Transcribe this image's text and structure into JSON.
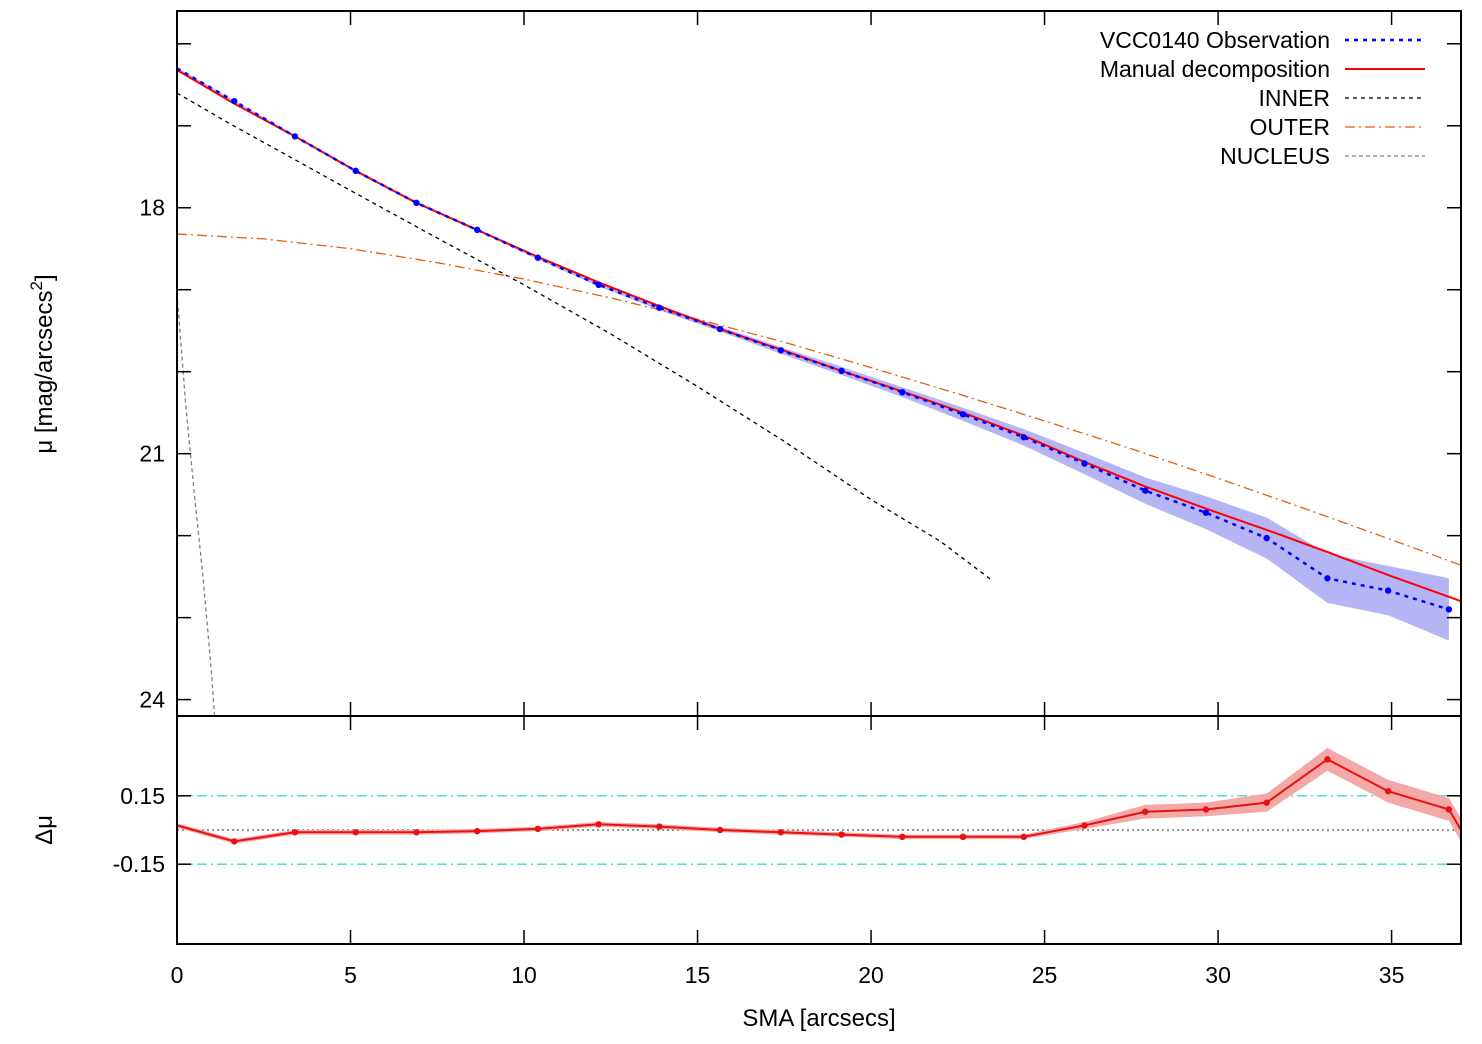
{
  "chart_data": [
    {
      "panel": "profile",
      "type": "line",
      "xlabel": "SMA [arcsecs]",
      "ylabel": "μ [mag/arcsecs",
      "ylabel_superscript": "2",
      "ylabel_close": "]",
      "xlim": [
        0,
        37
      ],
      "ylim": [
        24.2,
        15.6
      ],
      "y_inverted": true,
      "y_ticks": [
        18,
        21,
        24
      ],
      "y_minor_ticks": [
        16,
        17,
        19,
        20,
        22,
        23
      ],
      "x_ticks": [
        0,
        5,
        10,
        15,
        20,
        25,
        30,
        35
      ],
      "x_tick_labels": [],
      "legend_position": "top-right",
      "series": [
        {
          "name": "VCC0140 Observation",
          "style": "blue-dotted-points-band",
          "color": "#0000ff",
          "band_color": "#b5b5f5",
          "x": [
            0,
            1.65,
            3.4,
            5.15,
            6.9,
            8.65,
            10.4,
            12.15,
            13.9,
            15.65,
            17.4,
            19.15,
            20.9,
            22.65,
            24.4,
            26.15,
            27.9,
            29.65,
            31.4,
            33.15,
            34.9,
            36.65
          ],
          "y": [
            16.3,
            16.7,
            17.13,
            17.55,
            17.94,
            18.27,
            18.61,
            18.94,
            19.22,
            19.48,
            19.74,
            19.99,
            20.25,
            20.52,
            20.8,
            21.12,
            21.45,
            21.72,
            22.03,
            22.52,
            22.67,
            22.9
          ],
          "err": [
            0.01,
            0.01,
            0.01,
            0.01,
            0.01,
            0.01,
            0.02,
            0.02,
            0.03,
            0.03,
            0.04,
            0.05,
            0.06,
            0.08,
            0.1,
            0.13,
            0.16,
            0.2,
            0.25,
            0.3,
            0.3,
            0.38
          ]
        },
        {
          "name": "Manual decomposition",
          "style": "red-solid",
          "color": "#ff0000",
          "x": [
            0,
            1.65,
            3.4,
            5.15,
            6.9,
            8.65,
            10.4,
            12.15,
            13.9,
            15.65,
            17.4,
            19.15,
            20.9,
            22.65,
            24.4,
            26.15,
            27.9,
            29.65,
            31.4,
            33.15,
            34.9,
            37
          ],
          "y": [
            16.32,
            16.73,
            17.13,
            17.55,
            17.94,
            18.27,
            18.6,
            18.91,
            19.2,
            19.48,
            19.73,
            19.99,
            20.24,
            20.5,
            20.78,
            21.1,
            21.4,
            21.67,
            21.93,
            22.2,
            22.48,
            22.8
          ]
        },
        {
          "name": "INNER",
          "style": "black-dashed",
          "color": "#000000",
          "x": [
            0,
            1.5,
            3,
            5,
            7.5,
            10,
            12.5,
            15,
            17.5,
            20,
            22,
            23.5
          ],
          "y": [
            16.6,
            16.97,
            17.32,
            17.79,
            18.37,
            18.94,
            19.54,
            20.18,
            20.85,
            21.56,
            22.07,
            22.55
          ]
        },
        {
          "name": "OUTER",
          "style": "orange-dash-dot",
          "color": "#e06010",
          "x": [
            0,
            2.5,
            5,
            7.5,
            10,
            12.5,
            15,
            17.5,
            20,
            22.5,
            25,
            27.5,
            30,
            32.5,
            35,
            37
          ],
          "y": [
            18.32,
            18.38,
            18.5,
            18.67,
            18.87,
            19.1,
            19.36,
            19.64,
            19.95,
            20.27,
            20.6,
            20.94,
            21.3,
            21.67,
            22.05,
            22.36
          ]
        },
        {
          "name": "NUCLEUS",
          "style": "gray-dashed",
          "color": "#808080",
          "x": [
            0,
            0.25,
            0.5,
            0.75,
            1.0,
            1.08
          ],
          "y": [
            19.05,
            20.4,
            21.5,
            22.5,
            23.7,
            24.2
          ]
        }
      ]
    },
    {
      "panel": "residual",
      "type": "line",
      "xlabel": "SMA [arcsecs]",
      "ylabel": "Δμ",
      "xlim": [
        0,
        37
      ],
      "ylim": [
        -0.5,
        0.5
      ],
      "y_ticks": [
        0.15,
        -0.15
      ],
      "y_tick_labels": [
        "0.15",
        "-0.15"
      ],
      "x_ticks": [
        0,
        5,
        10,
        15,
        20,
        25,
        30,
        35
      ],
      "x_tick_labels": [
        "0",
        "5",
        "10",
        "15",
        "20",
        "25",
        "30",
        "35"
      ],
      "reference_lines": [
        {
          "y": 0.15,
          "style": "cyan-dash-dot",
          "color": "#40d8d8"
        },
        {
          "y": -0.15,
          "style": "cyan-dash-dot",
          "color": "#40d8d8"
        },
        {
          "y": 0,
          "style": "black-dotted",
          "color": "#555555"
        }
      ],
      "series": [
        {
          "style": "red-points-band",
          "color": "#e81010",
          "band_color": "#f4a8a8",
          "x": [
            0,
            1.65,
            3.4,
            5.15,
            6.9,
            8.65,
            10.4,
            12.15,
            13.9,
            15.65,
            17.4,
            19.15,
            20.9,
            22.65,
            24.4,
            26.15,
            27.9,
            29.65,
            31.4,
            33.15,
            34.9,
            36.65,
            37
          ],
          "y": [
            0.02,
            -0.05,
            -0.01,
            -0.01,
            -0.01,
            -0.005,
            0.005,
            0.025,
            0.015,
            0.0,
            -0.01,
            -0.02,
            -0.03,
            -0.03,
            -0.03,
            0.02,
            0.08,
            0.09,
            0.12,
            0.31,
            0.17,
            0.09,
            0.0
          ],
          "err": [
            0.01,
            0.01,
            0.01,
            0.01,
            0.01,
            0.01,
            0.01,
            0.01,
            0.01,
            0.01,
            0.01,
            0.01,
            0.01,
            0.01,
            0.01,
            0.015,
            0.03,
            0.03,
            0.04,
            0.05,
            0.05,
            0.05,
            0.05
          ]
        }
      ]
    }
  ]
}
